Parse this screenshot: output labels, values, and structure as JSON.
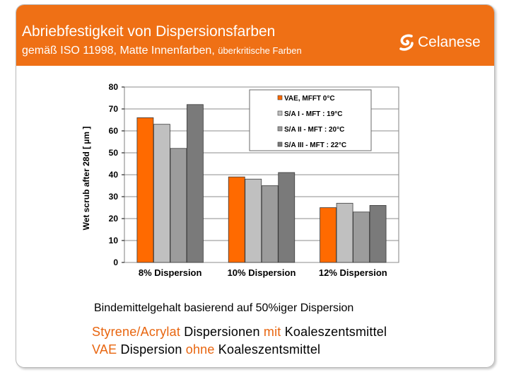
{
  "header": {
    "title": "Abriebfestigkeit von Dispersionsfarben",
    "subtitle_main": "gemäß ISO 11998, Matte Innenfarben,",
    "subtitle_small": "überkritische Farben",
    "logo_text": "Celanese",
    "background": "#ef7015"
  },
  "chart_data": {
    "type": "bar",
    "ylabel": "Wet scrub after 28d [ µm ]",
    "xlabel": "",
    "ylim": [
      0,
      80
    ],
    "yticks": [
      0,
      10,
      20,
      30,
      40,
      50,
      60,
      70,
      80
    ],
    "grid": true,
    "legend_position": "top-right",
    "categories": [
      "8% Dispersion",
      "10% Dispersion",
      "12% Dispersion"
    ],
    "series": [
      {
        "name": "VAE, MFFT 0°C",
        "color": "#ff6a00",
        "values": [
          66,
          39,
          25
        ]
      },
      {
        "name": "S/A I - MFT : 19°C",
        "color": "#c0c0c0",
        "values": [
          63,
          38,
          27
        ]
      },
      {
        "name": "S/A II - MFT : 20°C",
        "color": "#9c9c9c",
        "values": [
          52,
          35,
          23
        ]
      },
      {
        "name": "S/A III - MFT : 22°C",
        "color": "#7a7a7a",
        "values": [
          72,
          41,
          26
        ]
      }
    ]
  },
  "caption": "Bindemittelgehalt basierend auf 50%iger Dispersion",
  "legend_text": {
    "line1": {
      "a": "Styrene/Acrylat",
      "b": " Dispersionen ",
      "c": "mit",
      "d": " Koaleszentsmittel"
    },
    "line2": {
      "a": "VAE",
      "b": " Dispersion ",
      "c": "ohne",
      "d": " Koaleszentsmittel"
    },
    "highlight_color": "#e8650f"
  }
}
